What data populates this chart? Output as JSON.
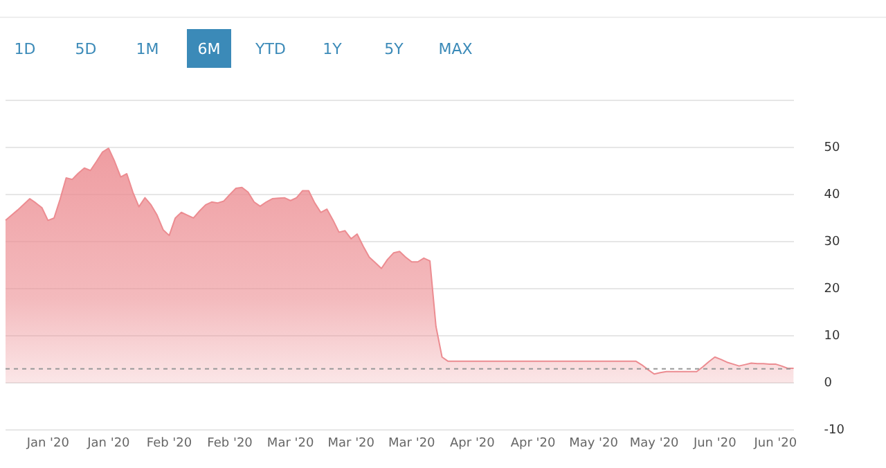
{
  "chart_data": {
    "type": "area",
    "annotations": [
      "1D",
      "5D",
      "1M",
      "6M",
      "YTD",
      "1Y",
      "5Y",
      "MAX"
    ],
    "categories": [
      null,
      null,
      null,
      null,
      null,
      null,
      null,
      "Jan '20",
      null,
      null,
      null,
      null,
      null,
      null,
      null,
      null,
      null,
      "Jan '20",
      null,
      null,
      null,
      null,
      null,
      null,
      null,
      null,
      null,
      "Feb '20",
      null,
      null,
      null,
      null,
      null,
      null,
      null,
      null,
      null,
      "Feb '20",
      null,
      null,
      null,
      null,
      null,
      null,
      null,
      null,
      null,
      "Mar '20",
      null,
      null,
      null,
      null,
      null,
      null,
      null,
      null,
      null,
      "Mar '20",
      null,
      null,
      null,
      null,
      null,
      null,
      null,
      null,
      null,
      "Mar '20",
      null,
      null,
      null,
      null,
      null,
      null,
      null,
      null,
      null,
      "Apr '20",
      null,
      null,
      null,
      null,
      null,
      null,
      null,
      null,
      null,
      "Apr '20",
      null,
      null,
      null,
      null,
      null,
      null,
      null,
      null,
      null,
      "May '20",
      null,
      null,
      null,
      null,
      null,
      null,
      null,
      null,
      null,
      "May '20",
      null,
      null,
      null,
      null,
      null,
      null,
      null,
      null,
      null,
      "Jun '20",
      null,
      null,
      null,
      null,
      null,
      null,
      null,
      null,
      null,
      "Jun '20",
      null,
      null,
      null
    ],
    "series": [
      {
        "color": "#ec8c91",
        "values": [
          34.5,
          35.6,
          36.7,
          37.9,
          39.1,
          38.2,
          37.2,
          34.5,
          35,
          39,
          43.5,
          43.2,
          44.5,
          45.6,
          45.1,
          47,
          49,
          49.8,
          47,
          43.7,
          44.4,
          40.5,
          37.4,
          39.3,
          37.8,
          35.6,
          32.5,
          31.3,
          35,
          36.2,
          35.6,
          35,
          36.5,
          37.8,
          38.4,
          38.2,
          38.6,
          40,
          41.3,
          41.5,
          40.5,
          38.4,
          37.5,
          38.4,
          39.1,
          39.2,
          39.3,
          38.7,
          39.3,
          40.8,
          40.8,
          38.2,
          36.2,
          36.9,
          34.6,
          32,
          32.3,
          30.6,
          31.6,
          29,
          26.7,
          25.5,
          24.3,
          26.2,
          27.6,
          27.9,
          26.7,
          25.7,
          25.7,
          26.5,
          25.9,
          12,
          5.5,
          4.6,
          4.6,
          4.6,
          4.6,
          4.6,
          4.6,
          4.6,
          4.6,
          4.6,
          4.6,
          4.6,
          4.6,
          4.6,
          4.6,
          4.6,
          4.6,
          4.6,
          4.6,
          4.6,
          4.6,
          4.6,
          4.6,
          4.6,
          4.6,
          4.6,
          4.6,
          4.6,
          4.6,
          4.6,
          4.6,
          4.6,
          4.6,
          3.8,
          2.8,
          1.9,
          2.2,
          2.4,
          2.4,
          2.4,
          2.4,
          2.4,
          2.4,
          3.4,
          4.5,
          5.5,
          5,
          4.4,
          4,
          3.6,
          3.9,
          4.2,
          4.1,
          4.1,
          4,
          4,
          3.6,
          3.1,
          3.1
        ]
      }
    ],
    "ylim": [
      -10,
      60
    ],
    "yticks": [
      -10,
      0,
      10,
      20,
      30,
      40,
      50,
      {
        "value": 60,
        "label": null
      }
    ],
    "grid": "y",
    "ref_lines": [
      {
        "axis": "y",
        "value": 3,
        "color": "#999999",
        "line_style": "dashed"
      }
    ]
  }
}
